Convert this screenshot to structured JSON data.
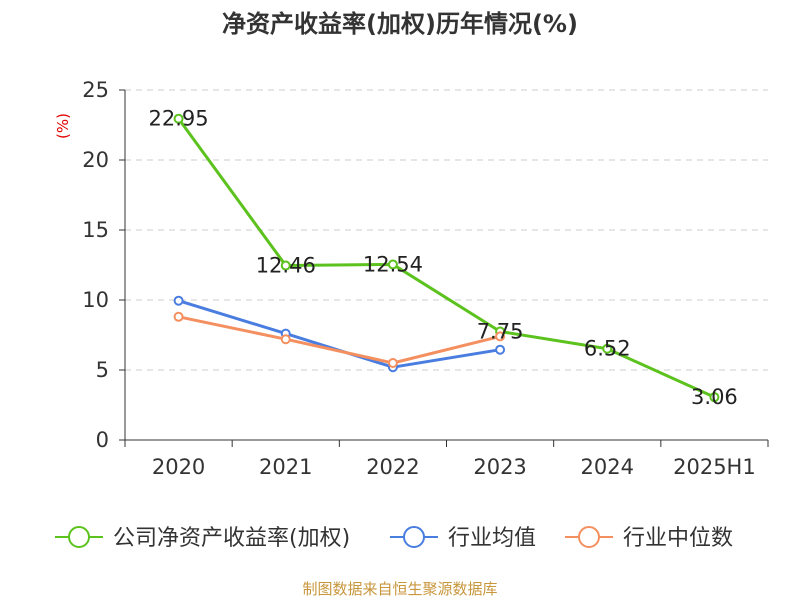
{
  "title": "净资产收益率(加权)历年情况(%)",
  "source": "制图数据来自恒生聚源数据库",
  "chart_data": {
    "type": "line",
    "title": "净资产收益率(加权)历年情况(%)",
    "ylabel": "(%)",
    "xlabel": "",
    "ylim": [
      0,
      25
    ],
    "yticks": [
      0,
      5,
      10,
      15,
      20,
      25
    ],
    "categories": [
      "2020",
      "2021",
      "2022",
      "2023",
      "2024",
      "2025H1"
    ],
    "grid": true,
    "legend_position": "bottom",
    "series": [
      {
        "name": "公司净资产收益率(加权)",
        "color": "#5cc21e",
        "values": [
          22.95,
          12.46,
          12.54,
          7.75,
          6.52,
          3.06
        ],
        "labels": [
          "22.95",
          "12.46",
          "12.54",
          "7.75",
          "6.52",
          "3.06"
        ]
      },
      {
        "name": "行业均值",
        "color": "#4a7de0",
        "values": [
          9.95,
          7.6,
          5.2,
          6.45,
          null,
          null
        ]
      },
      {
        "name": "行业中位数",
        "color": "#f49060",
        "values": [
          8.8,
          7.2,
          5.5,
          7.4,
          null,
          null
        ]
      }
    ]
  }
}
